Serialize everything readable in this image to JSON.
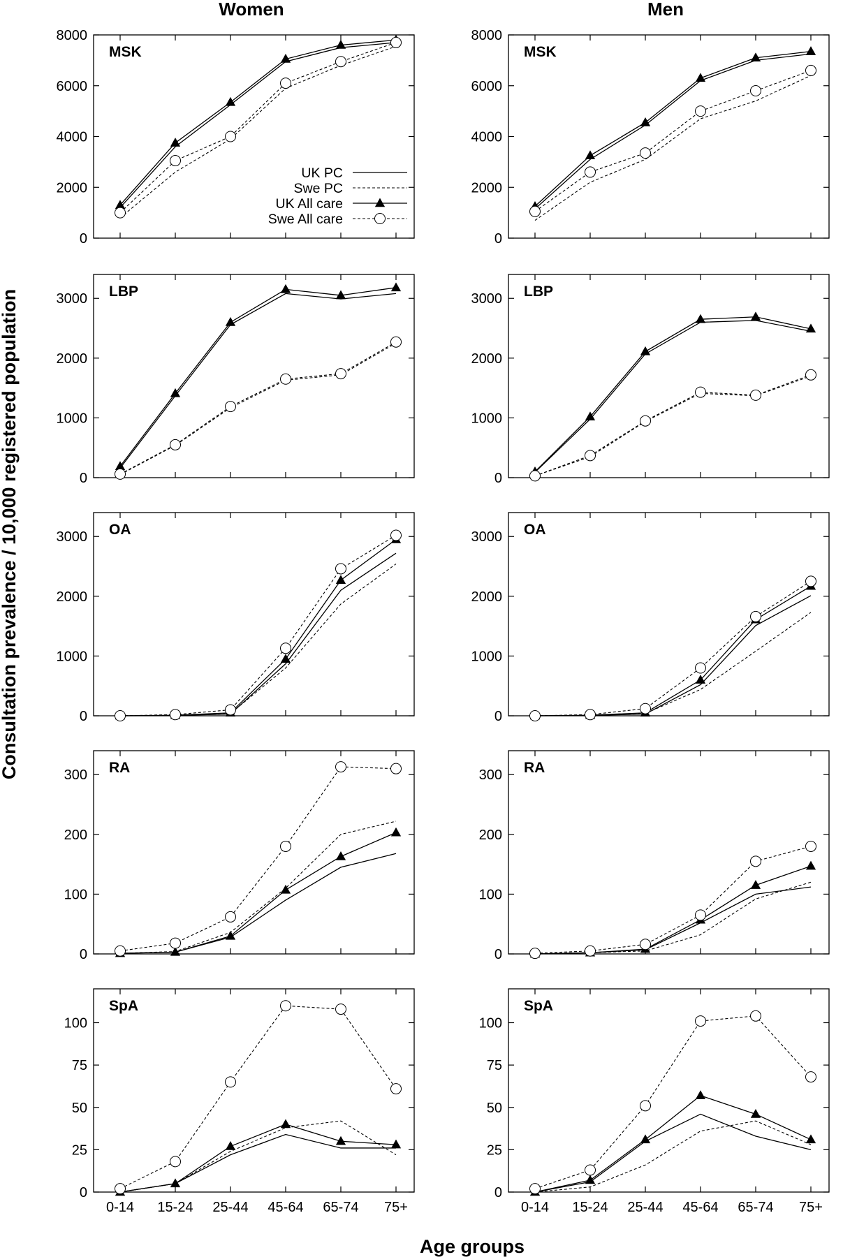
{
  "figure": {
    "col_titles": [
      "Women",
      "Men"
    ],
    "ylabel": "Consultation prevalence / 10,000 registered population",
    "xlabel": "Age groups"
  },
  "legend": [
    {
      "label": "UK PC",
      "style": "solid",
      "marker": "none"
    },
    {
      "label": "Swe PC",
      "style": "dashed",
      "marker": "none"
    },
    {
      "label": "UK All care",
      "style": "solid",
      "marker": "triangle"
    },
    {
      "label": "Swe All care",
      "style": "dashed",
      "marker": "circle"
    }
  ],
  "chart_data": [
    {
      "type": "line",
      "title": "MSK",
      "column": "Women",
      "categories": [
        "0-14",
        "15-24",
        "25-44",
        "45-64",
        "65-74",
        "75+"
      ],
      "ylim": [
        0,
        8000
      ],
      "yticks": [
        0,
        2000,
        4000,
        6000,
        8000
      ],
      "show_legend": true,
      "series": [
        {
          "name": "UK PC",
          "values": [
            1200,
            3600,
            5250,
            6950,
            7500,
            7700
          ]
        },
        {
          "name": "Swe PC",
          "values": [
            800,
            2600,
            3900,
            5900,
            6800,
            7550
          ]
        },
        {
          "name": "UK All care",
          "values": [
            1300,
            3750,
            5350,
            7050,
            7600,
            7800
          ]
        },
        {
          "name": "Swe All care",
          "values": [
            1000,
            3050,
            4000,
            6100,
            6950,
            7700
          ]
        }
      ]
    },
    {
      "type": "line",
      "title": "MSK",
      "column": "Men",
      "categories": [
        "0-14",
        "15-24",
        "25-44",
        "45-64",
        "65-74",
        "75+"
      ],
      "ylim": [
        0,
        8000
      ],
      "yticks": [
        0,
        2000,
        4000,
        6000,
        8000
      ],
      "show_legend": false,
      "series": [
        {
          "name": "UK PC",
          "values": [
            1150,
            3100,
            4450,
            6200,
            7000,
            7250
          ]
        },
        {
          "name": "Swe PC",
          "values": [
            700,
            2200,
            3100,
            4700,
            5400,
            6400
          ]
        },
        {
          "name": "UK All care",
          "values": [
            1250,
            3250,
            4550,
            6300,
            7100,
            7350
          ]
        },
        {
          "name": "Swe All care",
          "values": [
            1050,
            2600,
            3350,
            5000,
            5800,
            6600
          ]
        }
      ]
    },
    {
      "type": "line",
      "title": "LBP",
      "column": "Women",
      "categories": [
        "0-14",
        "15-24",
        "25-44",
        "45-64",
        "65-74",
        "75+"
      ],
      "ylim": [
        0,
        3400
      ],
      "yticks": [
        0,
        1000,
        2000,
        3000
      ],
      "show_legend": false,
      "series": [
        {
          "name": "UK PC",
          "values": [
            160,
            1370,
            2560,
            3080,
            2990,
            3080
          ]
        },
        {
          "name": "Swe PC",
          "values": [
            50,
            540,
            1170,
            1630,
            1720,
            2250
          ]
        },
        {
          "name": "UK All care",
          "values": [
            190,
            1410,
            2600,
            3150,
            3050,
            3180
          ]
        },
        {
          "name": "Swe All care",
          "values": [
            60,
            550,
            1190,
            1650,
            1740,
            2270
          ]
        }
      ]
    },
    {
      "type": "line",
      "title": "LBP",
      "column": "Men",
      "categories": [
        "0-14",
        "15-24",
        "25-44",
        "45-64",
        "65-74",
        "75+"
      ],
      "ylim": [
        0,
        3400
      ],
      "yticks": [
        0,
        1000,
        2000,
        3000
      ],
      "show_legend": false,
      "series": [
        {
          "name": "UK PC",
          "values": [
            90,
            980,
            2070,
            2600,
            2630,
            2450
          ]
        },
        {
          "name": "Swe PC",
          "values": [
            30,
            350,
            940,
            1410,
            1370,
            1700
          ]
        },
        {
          "name": "UK All care",
          "values": [
            100,
            1020,
            2110,
            2650,
            2690,
            2490
          ]
        },
        {
          "name": "Swe All care",
          "values": [
            30,
            370,
            950,
            1430,
            1380,
            1720
          ]
        }
      ]
    },
    {
      "type": "line",
      "title": "OA",
      "column": "Women",
      "categories": [
        "0-14",
        "15-24",
        "25-44",
        "45-64",
        "65-74",
        "75+"
      ],
      "ylim": [
        0,
        3400
      ],
      "yticks": [
        0,
        1000,
        2000,
        3000
      ],
      "show_legend": false,
      "series": [
        {
          "name": "UK PC",
          "values": [
            0,
            5,
            30,
            870,
            2100,
            2720
          ]
        },
        {
          "name": "Swe PC",
          "values": [
            0,
            5,
            40,
            800,
            1870,
            2540
          ]
        },
        {
          "name": "UK All care",
          "values": [
            0,
            10,
            50,
            950,
            2270,
            2950
          ]
        },
        {
          "name": "Swe All care",
          "values": [
            0,
            20,
            100,
            1130,
            2460,
            3020
          ]
        }
      ]
    },
    {
      "type": "line",
      "title": "OA",
      "column": "Men",
      "categories": [
        "0-14",
        "15-24",
        "25-44",
        "45-64",
        "65-74",
        "75+"
      ],
      "ylim": [
        0,
        3400
      ],
      "yticks": [
        0,
        1000,
        2000,
        3000
      ],
      "show_legend": false,
      "series": [
        {
          "name": "UK PC",
          "values": [
            0,
            5,
            30,
            520,
            1510,
            2010
          ]
        },
        {
          "name": "Swe PC",
          "values": [
            0,
            5,
            40,
            440,
            1080,
            1730
          ]
        },
        {
          "name": "UK All care",
          "values": [
            0,
            10,
            50,
            600,
            1610,
            2170
          ]
        },
        {
          "name": "Swe All care",
          "values": [
            0,
            20,
            120,
            800,
            1660,
            2250
          ]
        }
      ]
    },
    {
      "type": "line",
      "title": "RA",
      "column": "Women",
      "categories": [
        "0-14",
        "15-24",
        "25-44",
        "45-64",
        "65-74",
        "75+"
      ],
      "ylim": [
        0,
        340
      ],
      "yticks": [
        0,
        100,
        200,
        300
      ],
      "show_legend": false,
      "series": [
        {
          "name": "UK PC",
          "values": [
            1,
            3,
            28,
            90,
            145,
            168
          ]
        },
        {
          "name": "Swe PC",
          "values": [
            1,
            4,
            36,
            110,
            200,
            222
          ]
        },
        {
          "name": "UK All care",
          "values": [
            1,
            3,
            30,
            107,
            163,
            203
          ]
        },
        {
          "name": "Swe All care",
          "values": [
            5,
            18,
            62,
            180,
            313,
            310
          ]
        }
      ]
    },
    {
      "type": "line",
      "title": "RA",
      "column": "Men",
      "categories": [
        "0-14",
        "15-24",
        "25-44",
        "45-64",
        "65-74",
        "75+"
      ],
      "ylim": [
        0,
        340
      ],
      "yticks": [
        0,
        100,
        200,
        300
      ],
      "show_legend": false,
      "series": [
        {
          "name": "UK PC",
          "values": [
            0,
            2,
            7,
            52,
            100,
            112
          ]
        },
        {
          "name": "Swe PC",
          "values": [
            0,
            2,
            5,
            32,
            92,
            120
          ]
        },
        {
          "name": "UK All care",
          "values": [
            0,
            2,
            8,
            57,
            115,
            147
          ]
        },
        {
          "name": "Swe All care",
          "values": [
            1,
            5,
            16,
            65,
            155,
            180
          ]
        }
      ]
    },
    {
      "type": "line",
      "title": "SpA",
      "column": "Women",
      "categories": [
        "0-14",
        "15-24",
        "25-44",
        "45-64",
        "65-74",
        "75+"
      ],
      "ylim": [
        0,
        120
      ],
      "yticks": [
        0,
        25,
        50,
        75,
        100
      ],
      "show_legend": false,
      "series": [
        {
          "name": "UK PC",
          "values": [
            0,
            5,
            22,
            34,
            26,
            26
          ]
        },
        {
          "name": "Swe PC",
          "values": [
            0,
            5,
            24,
            38,
            42,
            22
          ]
        },
        {
          "name": "UK All care",
          "values": [
            0,
            5,
            27,
            40,
            30,
            28
          ]
        },
        {
          "name": "Swe All care",
          "values": [
            2,
            18,
            65,
            110,
            108,
            61
          ]
        }
      ]
    },
    {
      "type": "line",
      "title": "SpA",
      "column": "Men",
      "categories": [
        "0-14",
        "15-24",
        "25-44",
        "45-64",
        "65-74",
        "75+"
      ],
      "ylim": [
        0,
        120
      ],
      "yticks": [
        0,
        25,
        50,
        75,
        100
      ],
      "show_legend": false,
      "series": [
        {
          "name": "UK PC",
          "values": [
            0,
            6,
            30,
            46,
            33,
            25
          ]
        },
        {
          "name": "Swe PC",
          "values": [
            0,
            3,
            16,
            36,
            42,
            28
          ]
        },
        {
          "name": "UK All care",
          "values": [
            0,
            7,
            31,
            57,
            46,
            31
          ]
        },
        {
          "name": "Swe All care",
          "values": [
            2,
            13,
            51,
            101,
            104,
            68
          ]
        }
      ]
    }
  ]
}
